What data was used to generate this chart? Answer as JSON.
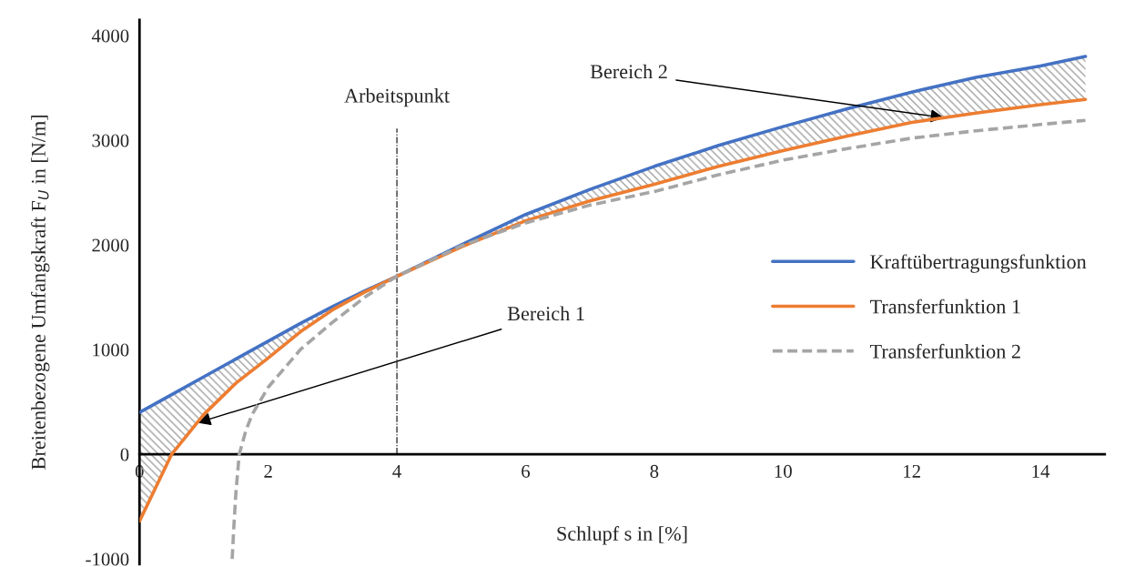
{
  "chart_data": {
    "type": "line",
    "xlabel": "Schlupf s in [%]",
    "ylabel": "Breitenbezogene Umfangskraft F$_{U}$ in [N/m]",
    "x": [
      0,
      0.5,
      1,
      1.5,
      2,
      2.5,
      3,
      3.5,
      4,
      5,
      6,
      7,
      8,
      9,
      10,
      11,
      12,
      13,
      14,
      14.7
    ],
    "series": [
      {
        "name": "Kraftübertragungsfunktion",
        "color": "#4472c4",
        "values": [
          400,
          570,
          740,
          910,
          1080,
          1250,
          1410,
          1560,
          1700,
          2000,
          2290,
          2530,
          2750,
          2950,
          3130,
          3300,
          3460,
          3600,
          3710,
          3800
        ],
        "lower": [
          -640,
          0,
          380,
          680,
          920,
          1170,
          1380,
          1550,
          1700,
          1980,
          2230,
          2420,
          2580,
          2750,
          2900,
          3040,
          3170,
          3260,
          3340,
          3390
        ],
        "upper": [
          400,
          570,
          740,
          910,
          1080,
          1250,
          1410,
          1560,
          1700,
          2000,
          2290,
          2530,
          2750,
          2950,
          3130,
          3300,
          3460,
          3600,
          3710,
          3800
        ]
      },
      {
        "name": "Transferfunktion 1",
        "color": "#ed7d31",
        "values": [
          -640,
          0,
          380,
          680,
          920,
          1170,
          1380,
          1550,
          1700,
          1980,
          2230,
          2420,
          2580,
          2750,
          2900,
          3040,
          3170,
          3260,
          3340,
          3390
        ]
      },
      {
        "name": "Transferfunktion 2",
        "color": "#a5a5a5",
        "line_style": "dashed",
        "x": [
          1.44,
          1.47,
          1.5,
          1.55,
          1.65,
          1.75,
          2,
          2.5,
          3,
          3.5,
          4,
          5,
          6,
          7,
          8,
          9,
          10,
          11,
          12,
          13,
          14,
          14.7
        ],
        "values": [
          -1000,
          -650,
          -350,
          0,
          220,
          380,
          640,
          1000,
          1260,
          1500,
          1700,
          1990,
          2210,
          2380,
          2510,
          2670,
          2810,
          2920,
          3020,
          3090,
          3150,
          3190
        ]
      }
    ],
    "xlim": [
      0,
      15
    ],
    "ylim": [
      -1050,
      4150
    ],
    "xticks": [
      0,
      2,
      4,
      6,
      8,
      10,
      12,
      14
    ],
    "yticks": [
      -1000,
      0,
      1000,
      2000,
      3000,
      4000
    ],
    "ref_lines": [
      {
        "axis": "x",
        "value": 4,
        "label": "Arbeitspunkt",
        "line_style": "dashdot"
      }
    ],
    "annotations": [
      {
        "text": "Bereich 1",
        "x": 0.9,
        "y": 300
      },
      {
        "text": "Bereich 2",
        "x": 12.5,
        "y": 3215
      }
    ],
    "grid": false,
    "legend": "right",
    "line_style": "solid",
    "marker": "none"
  }
}
